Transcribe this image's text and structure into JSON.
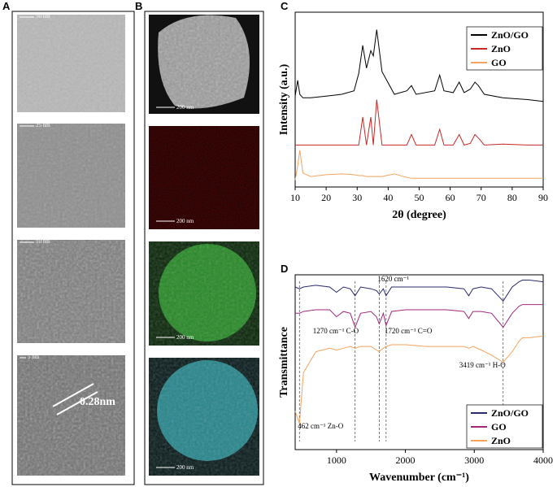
{
  "images": {
    "A": {
      "label": "A",
      "scales": [
        "50 nm",
        "25 nm",
        "10 nm",
        "5 nm"
      ],
      "annotation": "0.28nm"
    },
    "B": {
      "label": "B",
      "scales": [
        "200 nm",
        "200 nm",
        "200 nm",
        "200 nm"
      ]
    }
  },
  "chart_data": [
    {
      "type": "line",
      "panel_label": "C",
      "xlabel": "2θ (degree)",
      "ylabel": "Intensity (a.u.)",
      "x": [
        10,
        10.8,
        11.5,
        12.5,
        15,
        20,
        25,
        29,
        30.5,
        31.8,
        33,
        34.4,
        35.2,
        36.3,
        38,
        42,
        46,
        47.5,
        49,
        55,
        56.6,
        58,
        61,
        62.9,
        64.5,
        66.5,
        68,
        69.1,
        71,
        77,
        85,
        90
      ],
      "series": [
        {
          "name": "ZnO/GO",
          "color": "#000000",
          "values": [
            52,
            61,
            53,
            51,
            51,
            52,
            53,
            55,
            65,
            81,
            68,
            78,
            75,
            90,
            66,
            53,
            55,
            58,
            53,
            55,
            64,
            55,
            54,
            60,
            54,
            56,
            60,
            58,
            53,
            51,
            50,
            49
          ]
        },
        {
          "name": "ZnO",
          "color": "#c62828",
          "values": [
            24,
            24,
            24,
            24,
            24,
            24,
            24,
            24,
            24,
            40,
            24,
            40,
            24,
            50,
            24,
            24,
            24,
            30,
            24,
            24,
            33,
            24,
            24,
            30,
            24,
            25,
            30,
            28,
            24,
            24.5,
            24,
            24
          ]
        },
        {
          "name": "GO",
          "color": "#f4a460",
          "values": [
            4,
            12,
            21,
            8,
            6,
            7,
            7.5,
            7,
            6.5,
            6.5,
            6,
            6,
            6,
            6,
            6,
            7.5,
            5.5,
            5,
            5,
            5,
            5,
            5,
            5,
            5,
            5,
            5,
            5,
            5,
            5,
            5,
            5,
            5
          ]
        }
      ],
      "xlim": [
        10,
        90
      ],
      "xticks": [
        10,
        20,
        30,
        40,
        50,
        60,
        70,
        80,
        90
      ],
      "ylim": [
        0,
        100
      ],
      "legend": "upper right"
    },
    {
      "type": "line",
      "panel_label": "D",
      "xlabel": "Wavenumber (cm⁻¹)",
      "ylabel": "Transmittance",
      "x": [
        400,
        462,
        520,
        700,
        900,
        1000,
        1100,
        1200,
        1270,
        1350,
        1500,
        1580,
        1620,
        1680,
        1720,
        1800,
        2000,
        2300,
        2600,
        2850,
        2920,
        2980,
        3100,
        3250,
        3419,
        3550,
        3650,
        3700,
        3800,
        4000
      ],
      "series": [
        {
          "name": "ZnO/GO",
          "color": "#2b2a6e",
          "values": [
            93,
            92,
            93,
            94,
            93,
            90,
            93,
            92,
            88,
            93,
            92,
            91,
            89,
            92,
            88,
            93,
            93,
            93,
            93,
            92,
            88,
            92,
            93,
            92,
            85,
            93,
            96,
            97,
            97,
            96
          ]
        },
        {
          "name": "GO",
          "color": "#a0287a",
          "values": [
            78,
            78,
            79,
            80,
            80,
            76,
            79,
            78,
            70,
            78,
            79,
            76,
            72,
            78,
            71,
            79,
            80,
            80,
            80,
            79,
            75,
            79,
            79,
            78,
            70,
            78,
            82,
            83,
            83,
            83
          ]
        },
        {
          "name": "ZnO",
          "color": "#f4a460",
          "values": [
            22,
            15,
            44,
            56,
            58,
            57,
            58,
            59,
            58,
            59,
            59,
            57,
            56,
            58,
            59,
            60,
            60,
            59,
            59,
            59,
            58,
            59,
            57,
            54,
            50,
            56,
            62,
            64,
            64,
            65
          ]
        }
      ],
      "annotations": [
        {
          "x": 1620,
          "text": "1620 cm⁻¹"
        },
        {
          "x": 1270,
          "text": "1270 cm⁻¹ C-O"
        },
        {
          "x": 1720,
          "text": "1720 cm⁻¹ C=O"
        },
        {
          "x": 3419,
          "text": "3419 cm⁻¹ H-O"
        },
        {
          "x": 462,
          "text": "462 cm⁻¹ Zn-O"
        }
      ],
      "xlim": [
        400,
        4000
      ],
      "xticks": [
        1000,
        2000,
        3000,
        4000
      ],
      "ylim": [
        0,
        100
      ],
      "legend": "lower right"
    }
  ]
}
